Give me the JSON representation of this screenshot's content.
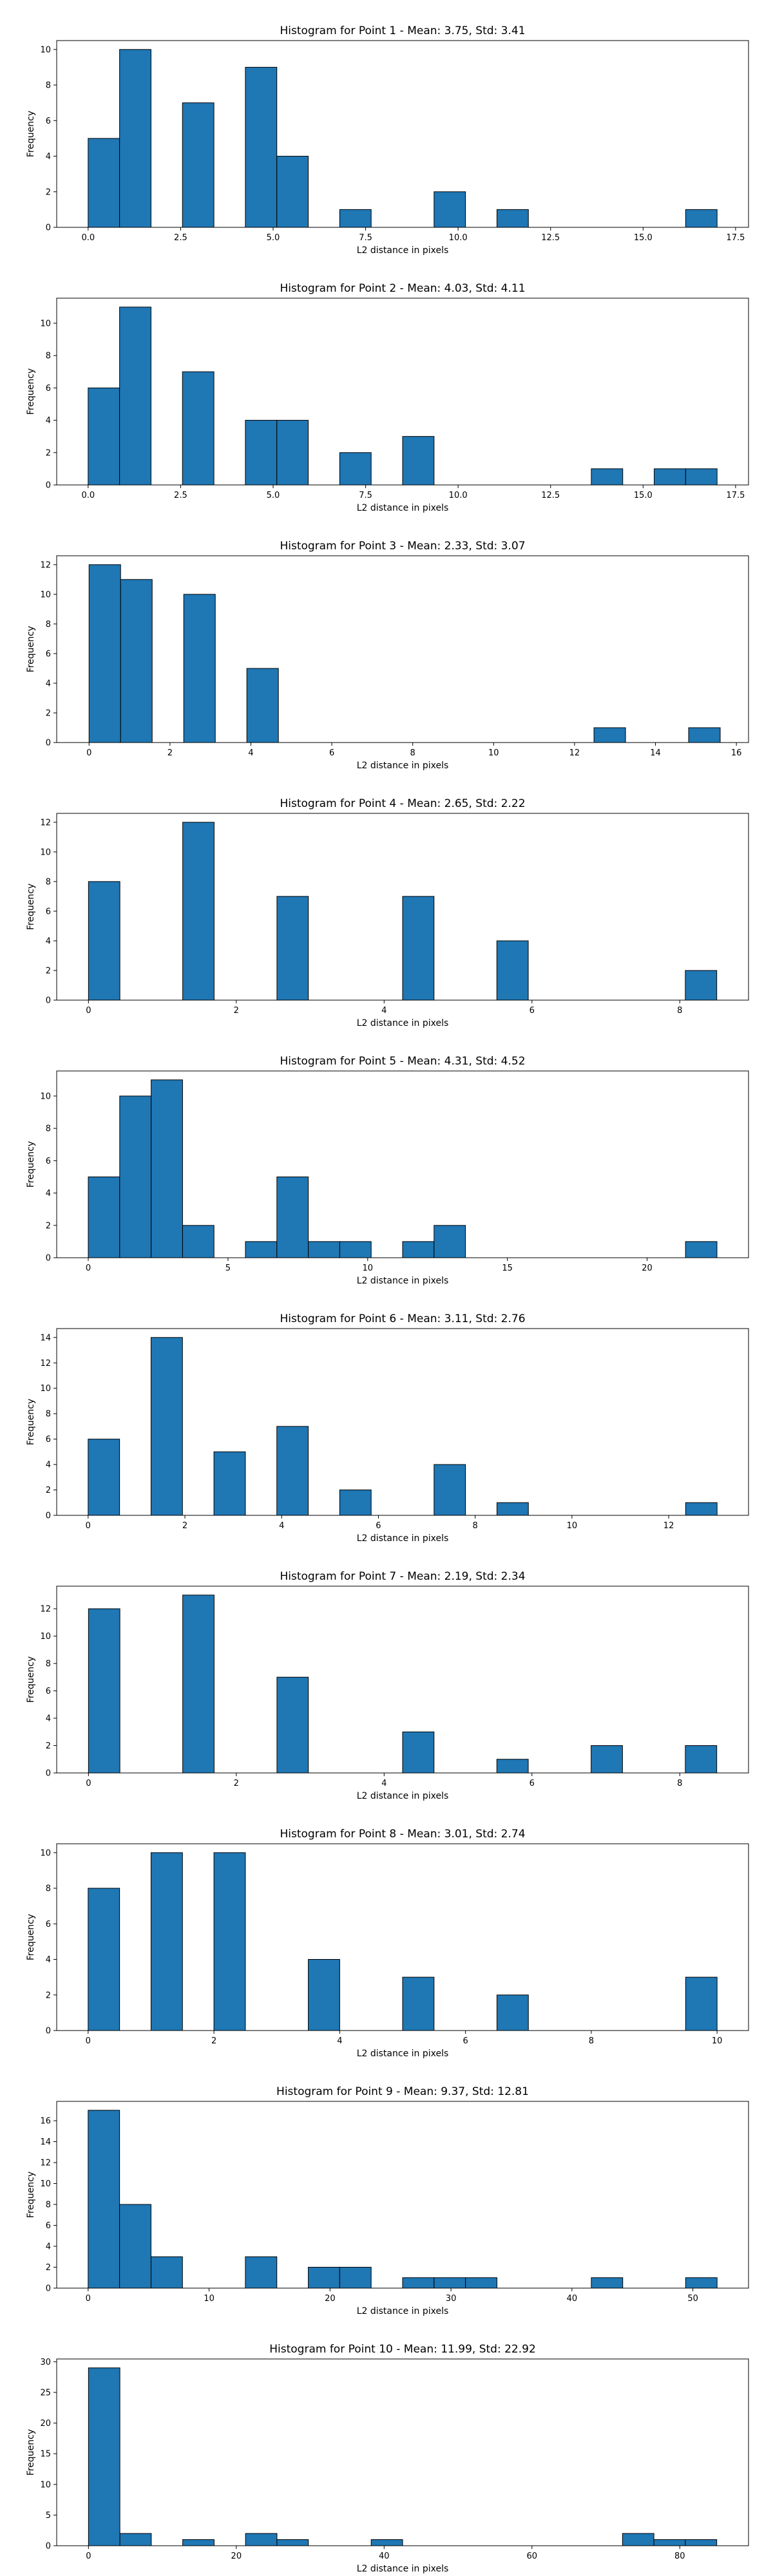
{
  "chart_data": [
    {
      "type": "bar",
      "title": "Histogram for Point 1 - Mean: 3.75, Std: 3.41",
      "xlabel": "L2 distance in pixels",
      "ylabel": "Frequency",
      "xlim": [
        -0.85,
        17.85
      ],
      "ylim": [
        0,
        10.5
      ],
      "xticks": [
        "0.0",
        "2.5",
        "5.0",
        "7.5",
        "10.0",
        "12.5",
        "15.0",
        "17.5"
      ],
      "xtick_values": [
        0,
        2.5,
        5,
        7.5,
        10,
        12.5,
        15,
        17.5
      ],
      "yticks": [
        0,
        2,
        4,
        6,
        8,
        10
      ],
      "bins": [
        {
          "x0": 0.0,
          "x1": 0.85,
          "value": 5
        },
        {
          "x0": 0.85,
          "x1": 1.7,
          "value": 10
        },
        {
          "x0": 2.55,
          "x1": 3.4,
          "value": 7
        },
        {
          "x0": 4.25,
          "x1": 5.1,
          "value": 9
        },
        {
          "x0": 5.1,
          "x1": 5.95,
          "value": 4
        },
        {
          "x0": 6.8,
          "x1": 7.65,
          "value": 1
        },
        {
          "x0": 9.35,
          "x1": 10.2,
          "value": 2
        },
        {
          "x0": 11.05,
          "x1": 11.9,
          "value": 1
        },
        {
          "x0": 16.15,
          "x1": 17.0,
          "value": 1
        }
      ]
    },
    {
      "type": "bar",
      "title": "Histogram for Point 2 - Mean: 4.03, Std: 4.11",
      "xlabel": "L2 distance in pixels",
      "ylabel": "Frequency",
      "xlim": [
        -0.85,
        17.85
      ],
      "ylim": [
        0,
        11.55
      ],
      "xticks": [
        "0.0",
        "2.5",
        "5.0",
        "7.5",
        "10.0",
        "12.5",
        "15.0",
        "17.5"
      ],
      "xtick_values": [
        0,
        2.5,
        5,
        7.5,
        10,
        12.5,
        15,
        17.5
      ],
      "yticks": [
        0,
        2,
        4,
        6,
        8,
        10
      ],
      "bins": [
        {
          "x0": 0.0,
          "x1": 0.85,
          "value": 6
        },
        {
          "x0": 0.85,
          "x1": 1.7,
          "value": 11
        },
        {
          "x0": 2.55,
          "x1": 3.4,
          "value": 7
        },
        {
          "x0": 4.25,
          "x1": 5.1,
          "value": 4
        },
        {
          "x0": 5.1,
          "x1": 5.95,
          "value": 4
        },
        {
          "x0": 6.8,
          "x1": 7.65,
          "value": 2
        },
        {
          "x0": 8.5,
          "x1": 9.35,
          "value": 3
        },
        {
          "x0": 13.6,
          "x1": 14.45,
          "value": 1
        },
        {
          "x0": 15.3,
          "x1": 16.15,
          "value": 1
        },
        {
          "x0": 16.15,
          "x1": 17.0,
          "value": 1
        }
      ]
    },
    {
      "type": "bar",
      "title": "Histogram for Point 3 - Mean: 2.33, Std: 3.07",
      "xlabel": "L2 distance in pixels",
      "ylabel": "Frequency",
      "xlim": [
        -0.8,
        16.3
      ],
      "ylim": [
        0,
        12.6
      ],
      "xticks": [
        "0",
        "2",
        "4",
        "6",
        "8",
        "10",
        "12",
        "14",
        "16"
      ],
      "xtick_values": [
        0,
        2,
        4,
        6,
        8,
        10,
        12,
        14,
        16
      ],
      "yticks": [
        0,
        2,
        4,
        6,
        8,
        10,
        12
      ],
      "bins": [
        {
          "x0": 0.0,
          "x1": 0.78,
          "value": 12
        },
        {
          "x0": 0.78,
          "x1": 1.56,
          "value": 11
        },
        {
          "x0": 2.34,
          "x1": 3.12,
          "value": 10
        },
        {
          "x0": 3.9,
          "x1": 4.68,
          "value": 5
        },
        {
          "x0": 12.48,
          "x1": 13.26,
          "value": 1
        },
        {
          "x0": 14.82,
          "x1": 15.6,
          "value": 1
        }
      ]
    },
    {
      "type": "bar",
      "title": "Histogram for Point 4 - Mean: 2.65, Std: 2.22",
      "xlabel": "L2 distance in pixels",
      "ylabel": "Frequency",
      "xlim": [
        -0.43,
        8.93
      ],
      "ylim": [
        0,
        12.6
      ],
      "xticks": [
        "0",
        "2",
        "4",
        "6",
        "8"
      ],
      "xtick_values": [
        0,
        2,
        4,
        6,
        8
      ],
      "yticks": [
        0,
        2,
        4,
        6,
        8,
        10,
        12
      ],
      "bins": [
        {
          "x0": 0.0,
          "x1": 0.425,
          "value": 8
        },
        {
          "x0": 1.275,
          "x1": 1.7,
          "value": 12
        },
        {
          "x0": 2.55,
          "x1": 2.975,
          "value": 7
        },
        {
          "x0": 4.25,
          "x1": 4.675,
          "value": 7
        },
        {
          "x0": 5.525,
          "x1": 5.95,
          "value": 4
        },
        {
          "x0": 8.075,
          "x1": 8.5,
          "value": 2
        }
      ]
    },
    {
      "type": "bar",
      "title": "Histogram for Point 5 - Mean: 4.31, Std: 4.52",
      "xlabel": "L2 distance in pixels",
      "ylabel": "Frequency",
      "xlim": [
        -1.13,
        23.63
      ],
      "ylim": [
        0,
        11.55
      ],
      "xticks": [
        "0",
        "5",
        "10",
        "15",
        "20"
      ],
      "xtick_values": [
        0,
        5,
        10,
        15,
        20
      ],
      "yticks": [
        0,
        2,
        4,
        6,
        8,
        10
      ],
      "bins": [
        {
          "x0": 0.0,
          "x1": 1.125,
          "value": 5
        },
        {
          "x0": 1.125,
          "x1": 2.25,
          "value": 10
        },
        {
          "x0": 2.25,
          "x1": 3.375,
          "value": 11
        },
        {
          "x0": 3.375,
          "x1": 4.5,
          "value": 2
        },
        {
          "x0": 5.625,
          "x1": 6.75,
          "value": 1
        },
        {
          "x0": 6.75,
          "x1": 7.875,
          "value": 5
        },
        {
          "x0": 7.875,
          "x1": 9.0,
          "value": 1
        },
        {
          "x0": 9.0,
          "x1": 10.125,
          "value": 1
        },
        {
          "x0": 11.25,
          "x1": 12.375,
          "value": 1
        },
        {
          "x0": 12.375,
          "x1": 13.5,
          "value": 2
        },
        {
          "x0": 21.375,
          "x1": 22.5,
          "value": 1
        }
      ]
    },
    {
      "type": "bar",
      "title": "Histogram for Point 6 - Mean: 3.11, Std: 2.76",
      "xlabel": "L2 distance in pixels",
      "ylabel": "Frequency",
      "xlim": [
        -0.65,
        13.65
      ],
      "ylim": [
        0,
        14.7
      ],
      "xticks": [
        "0",
        "2",
        "4",
        "6",
        "8",
        "10",
        "12"
      ],
      "xtick_values": [
        0,
        2,
        4,
        6,
        8,
        10,
        12
      ],
      "yticks": [
        0,
        2,
        4,
        6,
        8,
        10,
        12,
        14
      ],
      "bins": [
        {
          "x0": 0.0,
          "x1": 0.65,
          "value": 6
        },
        {
          "x0": 1.3,
          "x1": 1.95,
          "value": 14
        },
        {
          "x0": 2.6,
          "x1": 3.25,
          "value": 5
        },
        {
          "x0": 3.9,
          "x1": 4.55,
          "value": 7
        },
        {
          "x0": 5.2,
          "x1": 5.85,
          "value": 2
        },
        {
          "x0": 7.15,
          "x1": 7.8,
          "value": 4
        },
        {
          "x0": 8.45,
          "x1": 9.1,
          "value": 1
        },
        {
          "x0": 12.35,
          "x1": 13.0,
          "value": 1
        }
      ]
    },
    {
      "type": "bar",
      "title": "Histogram for Point 7 - Mean: 2.19, Std: 2.34",
      "xlabel": "L2 distance in pixels",
      "ylabel": "Frequency",
      "xlim": [
        -0.43,
        8.93
      ],
      "ylim": [
        0,
        13.65
      ],
      "xticks": [
        "0",
        "2",
        "4",
        "6",
        "8"
      ],
      "xtick_values": [
        0,
        2,
        4,
        6,
        8
      ],
      "yticks": [
        0,
        2,
        4,
        6,
        8,
        10,
        12
      ],
      "bins": [
        {
          "x0": 0.0,
          "x1": 0.425,
          "value": 12
        },
        {
          "x0": 1.275,
          "x1": 1.7,
          "value": 13
        },
        {
          "x0": 2.55,
          "x1": 2.975,
          "value": 7
        },
        {
          "x0": 4.25,
          "x1": 4.675,
          "value": 3
        },
        {
          "x0": 5.525,
          "x1": 5.95,
          "value": 1
        },
        {
          "x0": 6.8,
          "x1": 7.225,
          "value": 2
        },
        {
          "x0": 8.075,
          "x1": 8.5,
          "value": 2
        }
      ]
    },
    {
      "type": "bar",
      "title": "Histogram for Point 8 - Mean: 3.01, Std: 2.74",
      "xlabel": "L2 distance in pixels",
      "ylabel": "Frequency",
      "xlim": [
        -0.5,
        10.5
      ],
      "ylim": [
        0,
        10.5
      ],
      "xticks": [
        "0",
        "2",
        "4",
        "6",
        "8",
        "10"
      ],
      "xtick_values": [
        0,
        2,
        4,
        6,
        8,
        10
      ],
      "yticks": [
        0,
        2,
        4,
        6,
        8,
        10
      ],
      "bins": [
        {
          "x0": 0.0,
          "x1": 0.5,
          "value": 8
        },
        {
          "x0": 1.0,
          "x1": 1.5,
          "value": 10
        },
        {
          "x0": 2.0,
          "x1": 2.5,
          "value": 10
        },
        {
          "x0": 3.5,
          "x1": 4.0,
          "value": 4
        },
        {
          "x0": 5.0,
          "x1": 5.5,
          "value": 3
        },
        {
          "x0": 6.5,
          "x1": 7.0,
          "value": 2
        },
        {
          "x0": 9.5,
          "x1": 10.0,
          "value": 3
        }
      ]
    },
    {
      "type": "bar",
      "title": "Histogram for Point 9 - Mean: 9.37, Std: 12.81",
      "xlabel": "L2 distance in pixels",
      "ylabel": "Frequency",
      "xlim": [
        -2.6,
        54.6
      ],
      "ylim": [
        0,
        17.85
      ],
      "xticks": [
        "0",
        "10",
        "20",
        "30",
        "40",
        "50"
      ],
      "xtick_values": [
        0,
        10,
        20,
        30,
        40,
        50
      ],
      "yticks": [
        0,
        2,
        4,
        6,
        8,
        10,
        12,
        14,
        16
      ],
      "bins": [
        {
          "x0": 0.0,
          "x1": 2.6,
          "value": 17
        },
        {
          "x0": 2.6,
          "x1": 5.2,
          "value": 8
        },
        {
          "x0": 5.2,
          "x1": 7.8,
          "value": 3
        },
        {
          "x0": 13.0,
          "x1": 15.6,
          "value": 3
        },
        {
          "x0": 18.2,
          "x1": 20.8,
          "value": 2
        },
        {
          "x0": 20.8,
          "x1": 23.4,
          "value": 2
        },
        {
          "x0": 26.0,
          "x1": 28.6,
          "value": 1
        },
        {
          "x0": 28.6,
          "x1": 31.2,
          "value": 1
        },
        {
          "x0": 31.2,
          "x1": 33.8,
          "value": 1
        },
        {
          "x0": 41.6,
          "x1": 44.2,
          "value": 1
        },
        {
          "x0": 49.4,
          "x1": 52.0,
          "value": 1
        }
      ]
    },
    {
      "type": "bar",
      "title": "Histogram for Point 10 - Mean: 11.99, Std: 22.92",
      "xlabel": "L2 distance in pixels",
      "ylabel": "Frequency",
      "xlim": [
        -4.3,
        89.3
      ],
      "ylim": [
        0,
        30.45
      ],
      "xticks": [
        "0",
        "20",
        "40",
        "60",
        "80"
      ],
      "xtick_values": [
        0,
        20,
        40,
        60,
        80
      ],
      "yticks": [
        0,
        5,
        10,
        15,
        20,
        25,
        30
      ],
      "bins": [
        {
          "x0": 0.0,
          "x1": 4.25,
          "value": 29
        },
        {
          "x0": 4.25,
          "x1": 8.5,
          "value": 2
        },
        {
          "x0": 12.75,
          "x1": 17.0,
          "value": 1
        },
        {
          "x0": 21.25,
          "x1": 25.5,
          "value": 2
        },
        {
          "x0": 25.5,
          "x1": 29.75,
          "value": 1
        },
        {
          "x0": 38.25,
          "x1": 42.5,
          "value": 1
        },
        {
          "x0": 72.25,
          "x1": 76.5,
          "value": 2
        },
        {
          "x0": 76.5,
          "x1": 80.75,
          "value": 1
        },
        {
          "x0": 80.75,
          "x1": 85.0,
          "value": 1
        }
      ]
    }
  ],
  "style": {
    "bar_fill": "#1f77b4",
    "bar_edge": "#000000"
  }
}
